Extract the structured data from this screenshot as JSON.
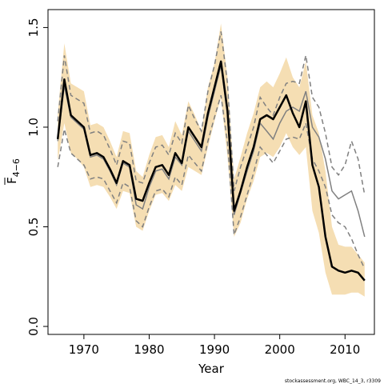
{
  "chart_data": {
    "type": "line",
    "xlabel": "Year",
    "ylabel_main": "F",
    "ylabel_sub": "4−6",
    "xlim": [
      1964.5,
      2014.5
    ],
    "ylim": [
      -0.04,
      1.59
    ],
    "xticks": [
      1970,
      1980,
      1990,
      2000,
      2010
    ],
    "yticks": [
      0.0,
      0.5,
      1.0,
      1.5
    ],
    "ytick_labels": [
      "0.0",
      "0.5",
      "1.0",
      "1.5"
    ],
    "grid": false,
    "credit": "stockassessment.org, WBC_14_3, r3309",
    "colors": {
      "band": "#f5deb3",
      "estimate": "#000000",
      "other": "#808080"
    },
    "x": [
      1966,
      1967,
      1968,
      1969,
      1970,
      1971,
      1972,
      1973,
      1974,
      1975,
      1976,
      1977,
      1978,
      1979,
      1980,
      1981,
      1982,
      1983,
      1984,
      1985,
      1986,
      1987,
      1988,
      1989,
      1990,
      1991,
      1992,
      1993,
      1994,
      1995,
      1996,
      1997,
      1998,
      1999,
      2000,
      2001,
      2002,
      2003,
      2004,
      2005,
      2006,
      2007,
      2008,
      2009,
      2010,
      2011,
      2012,
      2013
    ],
    "series": [
      {
        "role": "band_upper",
        "values": [
          1.07,
          1.42,
          1.22,
          1.2,
          1.18,
          1.01,
          1.02,
          1.0,
          0.93,
          0.85,
          0.98,
          0.97,
          0.78,
          0.75,
          0.86,
          0.95,
          0.96,
          0.9,
          1.03,
          0.96,
          1.13,
          1.06,
          0.98,
          1.2,
          1.32,
          1.52,
          1.25,
          0.74,
          0.85,
          0.97,
          1.07,
          1.2,
          1.23,
          1.2,
          1.27,
          1.35,
          1.25,
          1.2,
          1.33,
          1.06,
          0.97,
          0.78,
          0.5,
          0.41,
          0.4,
          0.4,
          0.36,
          0.32
        ]
      },
      {
        "role": "band_lower",
        "values": [
          0.83,
          1.02,
          0.87,
          0.84,
          0.8,
          0.7,
          0.71,
          0.7,
          0.65,
          0.59,
          0.68,
          0.67,
          0.5,
          0.48,
          0.58,
          0.66,
          0.67,
          0.63,
          0.71,
          0.68,
          0.8,
          0.78,
          0.76,
          0.9,
          1.03,
          1.15,
          0.85,
          0.45,
          0.52,
          0.64,
          0.73,
          0.85,
          0.87,
          0.85,
          0.9,
          0.97,
          0.9,
          0.86,
          0.9,
          0.58,
          0.47,
          0.27,
          0.16,
          0.16,
          0.16,
          0.17,
          0.17,
          0.15
        ]
      },
      {
        "role": "estimate",
        "values": [
          0.94,
          1.24,
          1.06,
          1.03,
          1.0,
          0.86,
          0.87,
          0.85,
          0.79,
          0.72,
          0.83,
          0.81,
          0.64,
          0.63,
          0.72,
          0.8,
          0.81,
          0.76,
          0.87,
          0.82,
          1.0,
          0.95,
          0.9,
          1.07,
          1.2,
          1.33,
          1.08,
          0.58,
          0.68,
          0.8,
          0.9,
          1.04,
          1.06,
          1.04,
          1.1,
          1.16,
          1.07,
          1.0,
          1.13,
          0.81,
          0.7,
          0.45,
          0.3,
          0.28,
          0.27,
          0.28,
          0.27,
          0.23
        ]
      },
      {
        "role": "other_estimate",
        "values": [
          0.93,
          1.21,
          1.05,
          1.02,
          0.99,
          0.85,
          0.86,
          0.84,
          0.78,
          0.71,
          0.82,
          0.8,
          0.61,
          0.59,
          0.7,
          0.78,
          0.79,
          0.74,
          0.85,
          0.81,
          0.98,
          0.93,
          0.88,
          1.05,
          1.18,
          1.31,
          1.06,
          0.56,
          0.67,
          0.78,
          0.88,
          1.02,
          0.98,
          0.94,
          1.02,
          1.08,
          1.1,
          1.08,
          1.18,
          1.0,
          0.95,
          0.84,
          0.68,
          0.64,
          0.66,
          0.68,
          0.58,
          0.45
        ]
      },
      {
        "role": "other_upper",
        "values": [
          1.03,
          1.36,
          1.16,
          1.14,
          1.12,
          0.97,
          0.98,
          0.96,
          0.89,
          0.81,
          0.93,
          0.92,
          0.73,
          0.72,
          0.82,
          0.9,
          0.91,
          0.86,
          0.97,
          0.92,
          1.11,
          1.04,
          0.98,
          1.18,
          1.31,
          1.48,
          1.22,
          0.68,
          0.8,
          0.9,
          1.0,
          1.15,
          1.1,
          1.06,
          1.15,
          1.22,
          1.23,
          1.22,
          1.36,
          1.15,
          1.1,
          0.97,
          0.8,
          0.76,
          0.81,
          0.93,
          0.84,
          0.66
        ]
      },
      {
        "role": "other_lower",
        "values": [
          0.8,
          0.99,
          0.87,
          0.84,
          0.81,
          0.74,
          0.75,
          0.74,
          0.68,
          0.62,
          0.72,
          0.7,
          0.53,
          0.5,
          0.6,
          0.68,
          0.69,
          0.65,
          0.75,
          0.71,
          0.86,
          0.82,
          0.78,
          0.93,
          1.05,
          1.16,
          0.92,
          0.46,
          0.55,
          0.66,
          0.77,
          0.9,
          0.86,
          0.82,
          0.88,
          0.94,
          0.95,
          0.94,
          1.02,
          0.84,
          0.78,
          0.7,
          0.56,
          0.52,
          0.5,
          0.44,
          0.36,
          0.29
        ]
      }
    ]
  }
}
